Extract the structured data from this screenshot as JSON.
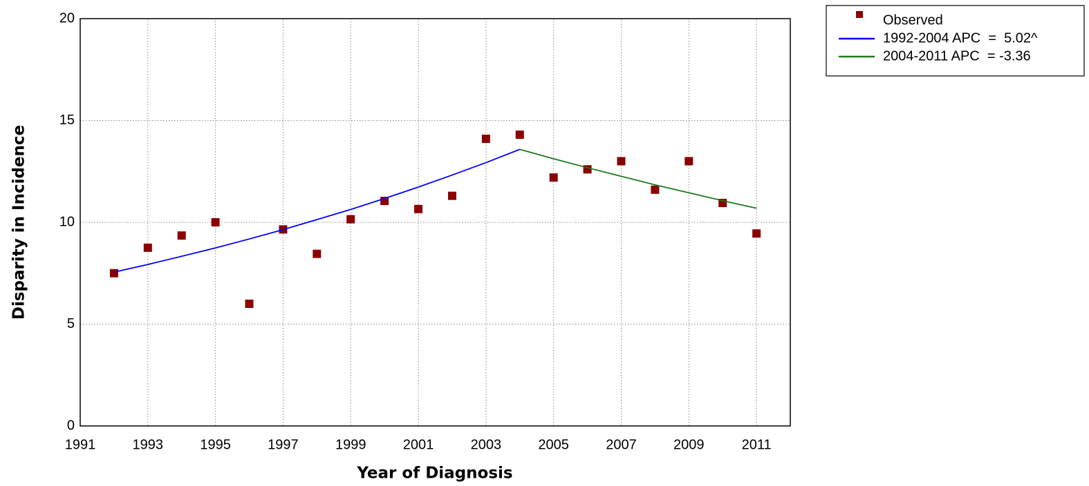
{
  "chart_data": {
    "type": "line",
    "x_label": "Year of Diagnosis",
    "y_label": "Disparity in Incidence",
    "x": [
      1992,
      1993,
      1994,
      1995,
      1996,
      1997,
      1998,
      1999,
      2000,
      2001,
      2002,
      2003,
      2004,
      2005,
      2006,
      2007,
      2008,
      2009,
      2010,
      2011
    ],
    "series": [
      {
        "name": "Observed",
        "color": "#8b0000",
        "mode": "markers",
        "values": [
          7.5,
          8.75,
          9.35,
          10.0,
          6.0,
          9.65,
          8.45,
          10.15,
          11.05,
          10.65,
          11.3,
          14.1,
          14.3,
          12.2,
          12.6,
          13.0,
          11.6,
          13.0,
          10.95,
          9.45
        ]
      },
      {
        "name": "1992-2004 APC  =  5.02^",
        "color": "#0000ff",
        "mode": "line",
        "values": [
          7.55,
          7.93,
          8.33,
          8.74,
          9.18,
          9.64,
          10.13,
          10.63,
          11.17,
          11.73,
          12.32,
          12.93,
          13.58,
          null,
          null,
          null,
          null,
          null,
          null,
          null
        ]
      },
      {
        "name": "2004-2011 APC  = -3.36",
        "color": "#1a7a1a",
        "mode": "line",
        "values": [
          null,
          null,
          null,
          null,
          null,
          null,
          null,
          null,
          null,
          null,
          null,
          null,
          13.58,
          13.12,
          12.68,
          12.26,
          11.84,
          11.45,
          11.06,
          10.69
        ]
      }
    ],
    "xlim": [
      1991,
      2012
    ],
    "xticks": [
      1991,
      1993,
      1995,
      1997,
      1999,
      2001,
      2003,
      2005,
      2007,
      2009,
      2011
    ],
    "ylim": [
      0,
      20
    ],
    "yticks": [
      0,
      5,
      10,
      15,
      20
    ],
    "grid": true,
    "legend": "outside-top-right"
  }
}
